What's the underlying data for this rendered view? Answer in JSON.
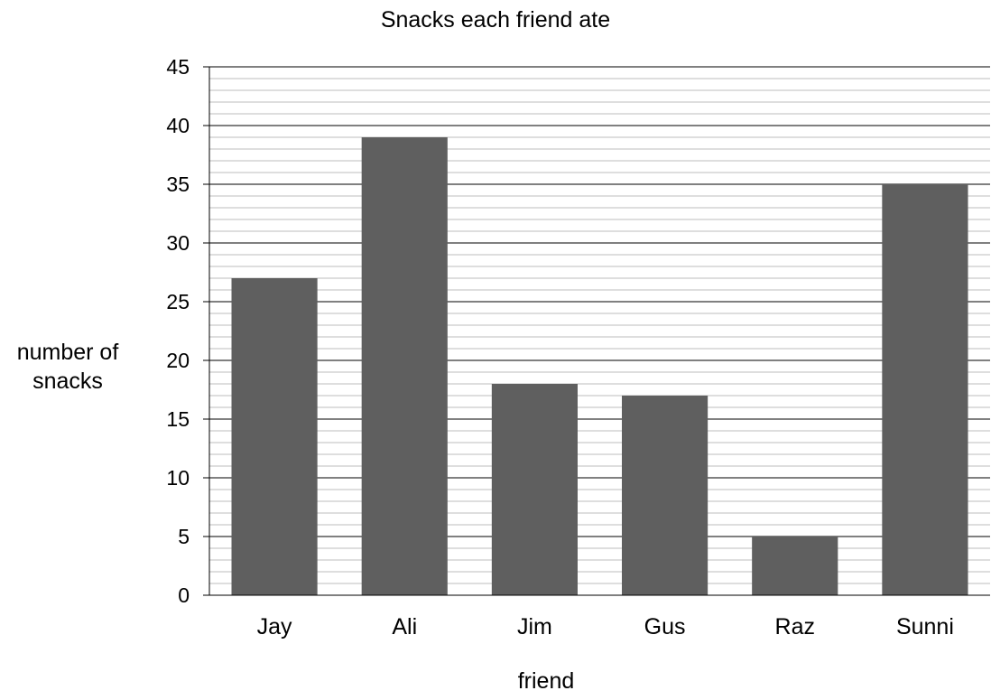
{
  "chart_data": {
    "type": "bar",
    "title": "Snacks each friend ate",
    "xlabel": "friend",
    "ylabel_lines": [
      "number of",
      "snacks"
    ],
    "categories": [
      "Jay",
      "Ali",
      "Jim",
      "Gus",
      "Raz",
      "Sunni"
    ],
    "values": [
      27,
      39,
      18,
      17,
      5,
      35
    ],
    "ylim": [
      0,
      45
    ],
    "yticks": [
      0,
      5,
      10,
      15,
      20,
      25,
      30,
      35,
      40,
      45
    ],
    "grid": true,
    "bar_color": "#5f5f5f",
    "major_grid_color": "#000000",
    "minor_grid_color": "#bdbdbd"
  }
}
